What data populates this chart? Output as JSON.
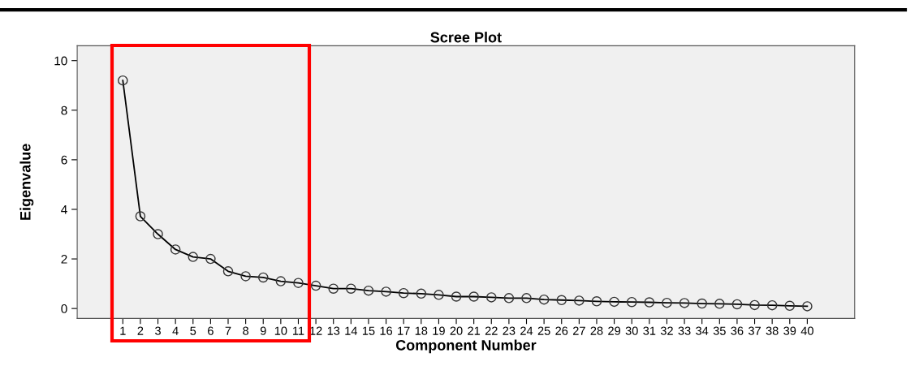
{
  "chart_data": {
    "type": "line",
    "title": "Scree Plot",
    "xlabel": "Component Number",
    "ylabel": "Eigenvalue",
    "categories": [
      "1",
      "2",
      "3",
      "4",
      "5",
      "6",
      "7",
      "8",
      "9",
      "10",
      "11",
      "12",
      "13",
      "14",
      "15",
      "16",
      "17",
      "18",
      "19",
      "20",
      "21",
      "22",
      "23",
      "24",
      "25",
      "26",
      "27",
      "28",
      "29",
      "30",
      "31",
      "32",
      "33",
      "34",
      "35",
      "36",
      "37",
      "38",
      "39",
      "40"
    ],
    "series": [
      {
        "color": "#000000",
        "values": [
          9.2,
          3.72,
          3.0,
          2.38,
          2.08,
          2.0,
          1.5,
          1.3,
          1.25,
          1.1,
          1.03,
          0.92,
          0.8,
          0.8,
          0.72,
          0.68,
          0.62,
          0.6,
          0.55,
          0.48,
          0.48,
          0.45,
          0.42,
          0.42,
          0.36,
          0.34,
          0.32,
          0.29,
          0.27,
          0.26,
          0.25,
          0.23,
          0.22,
          0.2,
          0.19,
          0.17,
          0.14,
          0.13,
          0.11,
          0.09
        ]
      }
    ],
    "ylim": [
      -0.4,
      10.6
    ],
    "yticks": [
      0,
      2,
      4,
      6,
      8,
      10
    ],
    "marker": "circle",
    "line_style": "solid",
    "grid": false,
    "legend": false
  }
}
